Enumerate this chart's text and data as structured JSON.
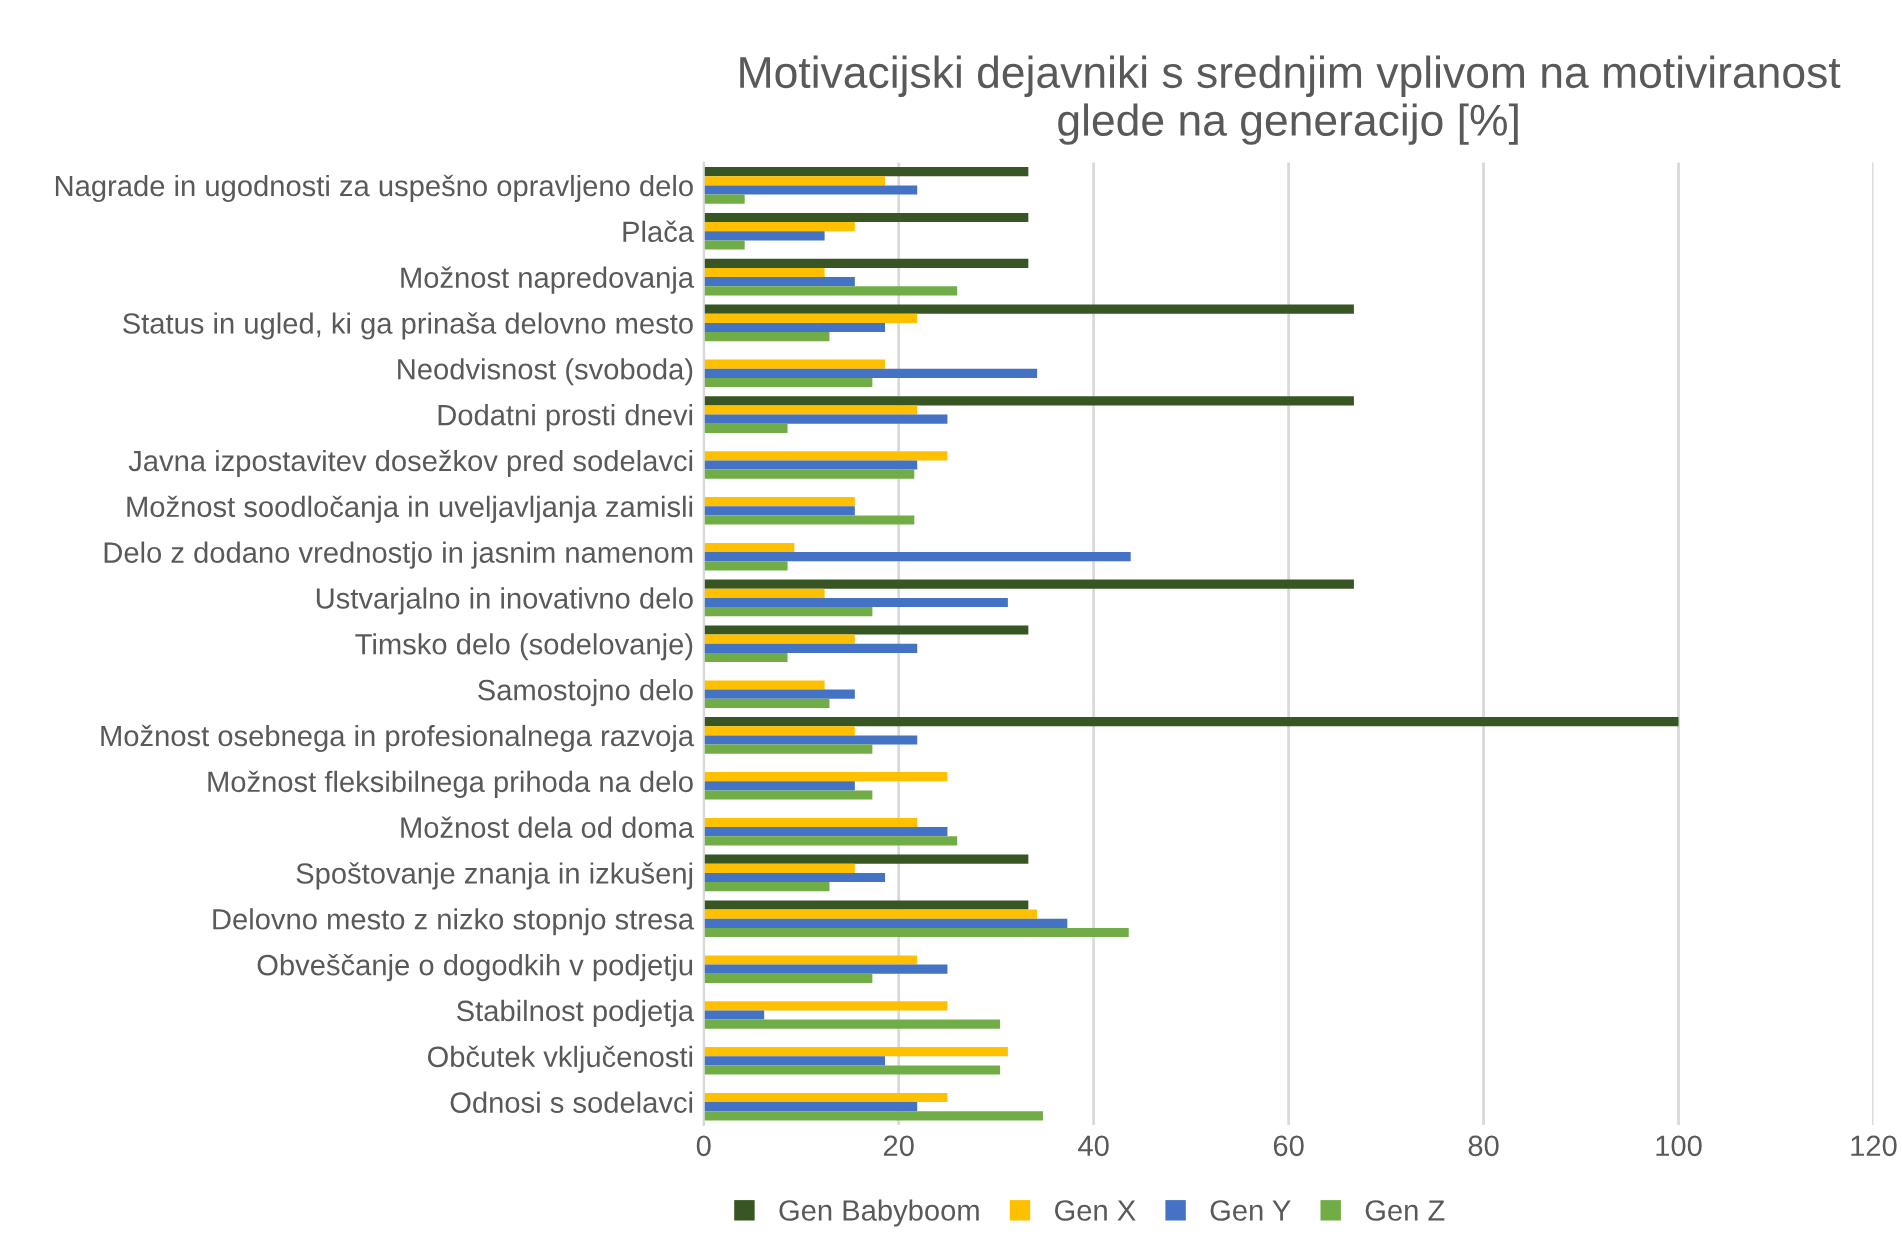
{
  "chart_data": {
    "type": "bar",
    "orientation": "horizontal",
    "title": "Motivacijski dejavniki s srednjim vplivom na motiviranost glede na generacijo [%]",
    "categories": [
      "Nagrade in ugodnosti za uspešno opravljeno delo",
      "Plača",
      "Možnost napredovanja",
      "Status in ugled, ki ga prinaša delovno mesto",
      "Neodvisnost (svoboda)",
      "Dodatni prosti dnevi",
      "Javna izpostavitev dosežkov pred sodelavci",
      "Možnost soodločanja in uveljavljanja zamisli",
      "Delo z dodano vrednostjo in jasnim namenom",
      "Ustvarjalno in inovativno delo",
      "Timsko delo (sodelovanje)",
      "Samostojno delo",
      "Možnost osebnega in profesionalnega razvoja",
      "Možnost fleksibilnega prihoda na delo",
      "Možnost dela od doma",
      "Spoštovanje znanja in izkušenj",
      "Delovno mesto z nizko stopnjo stresa",
      "Obveščanje o dogodkih v podjetju",
      "Stabilnost podjetja",
      "Občutek vključenosti",
      "Odnosi s sodelavci"
    ],
    "series": [
      {
        "name": "Gen Babyboom",
        "color": "#375623",
        "values": [
          33.3,
          33.3,
          33.3,
          66.7,
          null,
          66.7,
          null,
          null,
          null,
          66.7,
          33.3,
          null,
          100,
          null,
          null,
          33.3,
          33.3,
          null,
          null,
          null,
          null
        ]
      },
      {
        "name": "Gen X",
        "color": "#ffc000",
        "values": [
          18.6,
          15.5,
          12.4,
          21.9,
          18.6,
          21.9,
          25.0,
          15.5,
          9.3,
          12.4,
          15.5,
          12.4,
          15.5,
          25.0,
          21.9,
          15.5,
          34.2,
          21.9,
          25.0,
          31.2,
          25.0
        ]
      },
      {
        "name": "Gen Y",
        "color": "#4472c4",
        "values": [
          21.9,
          12.4,
          15.5,
          18.6,
          34.2,
          25.0,
          21.9,
          15.5,
          43.8,
          31.2,
          21.9,
          15.5,
          21.9,
          15.5,
          25.0,
          18.6,
          37.3,
          25.0,
          6.2,
          18.6,
          21.9
        ]
      },
      {
        "name": "Gen Z",
        "color": "#70ad47",
        "values": [
          4.2,
          4.2,
          26.0,
          12.9,
          17.3,
          8.6,
          21.6,
          21.6,
          8.6,
          17.3,
          8.6,
          12.9,
          17.3,
          17.3,
          26.0,
          12.9,
          43.6,
          17.3,
          30.4,
          30.4,
          34.8
        ]
      }
    ],
    "xlim": [
      0,
      120
    ],
    "xticks": [
      0,
      20,
      40,
      60,
      80,
      100,
      120
    ],
    "grid": "x",
    "legend": "bottom"
  }
}
